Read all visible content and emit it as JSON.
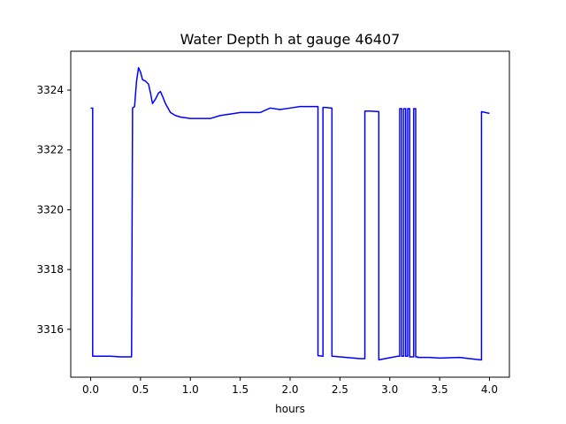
{
  "chart_data": {
    "type": "line",
    "title": "Water Depth h at gauge 46407",
    "xlabel": "hours",
    "ylabel": "",
    "xlim": [
      -0.2,
      4.2
    ],
    "ylim": [
      3314.4,
      3325.3
    ],
    "xticks": [
      0.0,
      0.5,
      1.0,
      1.5,
      2.0,
      2.5,
      3.0,
      3.5,
      4.0
    ],
    "xtick_labels": [
      "0.0",
      "0.5",
      "1.0",
      "1.5",
      "2.0",
      "2.5",
      "3.0",
      "3.5",
      "4.0"
    ],
    "yticks": [
      3316,
      3318,
      3320,
      3322,
      3324
    ],
    "ytick_labels": [
      "3316",
      "3318",
      "3320",
      "3322",
      "3324"
    ],
    "grid": false,
    "series_color": "#0000ff",
    "series": [
      {
        "x": [
          0.0,
          0.02,
          0.02,
          0.1,
          0.2,
          0.3,
          0.41,
          0.42,
          0.42,
          0.44,
          0.46,
          0.48,
          0.5,
          0.52,
          0.55,
          0.58,
          0.6,
          0.62,
          0.65,
          0.68,
          0.7,
          0.72,
          0.75,
          0.8,
          0.85,
          0.9,
          1.0,
          1.1,
          1.2,
          1.3,
          1.4,
          1.5,
          1.6,
          1.7,
          1.8,
          1.9,
          2.0,
          2.1,
          2.2,
          2.28,
          2.28,
          2.33,
          2.33,
          2.35,
          2.35,
          2.42,
          2.42,
          2.5,
          2.6,
          2.7,
          2.75,
          2.75,
          2.8,
          2.89,
          2.89,
          3.0,
          3.08,
          3.1,
          3.1,
          3.12,
          3.12,
          3.14,
          3.14,
          3.16,
          3.16,
          3.18,
          3.18,
          3.2,
          3.2,
          3.24,
          3.24,
          3.26,
          3.26,
          3.28,
          3.28,
          3.4,
          3.5,
          3.6,
          3.7,
          3.8,
          3.91,
          3.92,
          3.92,
          4.0
        ],
        "y": [
          3323.4,
          3323.4,
          3315.1,
          3315.1,
          3315.1,
          3315.08,
          3315.08,
          3323.4,
          3323.4,
          3323.45,
          3324.3,
          3324.75,
          3324.6,
          3324.35,
          3324.3,
          3324.2,
          3323.9,
          3323.55,
          3323.7,
          3323.9,
          3323.95,
          3323.8,
          3323.55,
          3323.25,
          3323.15,
          3323.1,
          3323.05,
          3323.05,
          3323.05,
          3323.15,
          3323.2,
          3323.25,
          3323.25,
          3323.25,
          3323.4,
          3323.35,
          3323.4,
          3323.45,
          3323.45,
          3323.45,
          3315.12,
          3315.1,
          3323.42,
          3323.42,
          3323.42,
          3323.4,
          3315.1,
          3315.08,
          3315.05,
          3315.02,
          3315.02,
          3323.3,
          3323.3,
          3323.28,
          3314.98,
          3315.05,
          3315.1,
          3315.1,
          3323.38,
          3323.38,
          3315.1,
          3315.1,
          3323.38,
          3323.38,
          3315.1,
          3315.1,
          3323.38,
          3323.38,
          3315.08,
          3315.08,
          3323.38,
          3323.38,
          3315.08,
          3315.08,
          3315.06,
          3315.06,
          3315.04,
          3315.05,
          3315.06,
          3315.02,
          3314.98,
          3314.98,
          3323.28,
          3323.22
        ]
      }
    ]
  }
}
